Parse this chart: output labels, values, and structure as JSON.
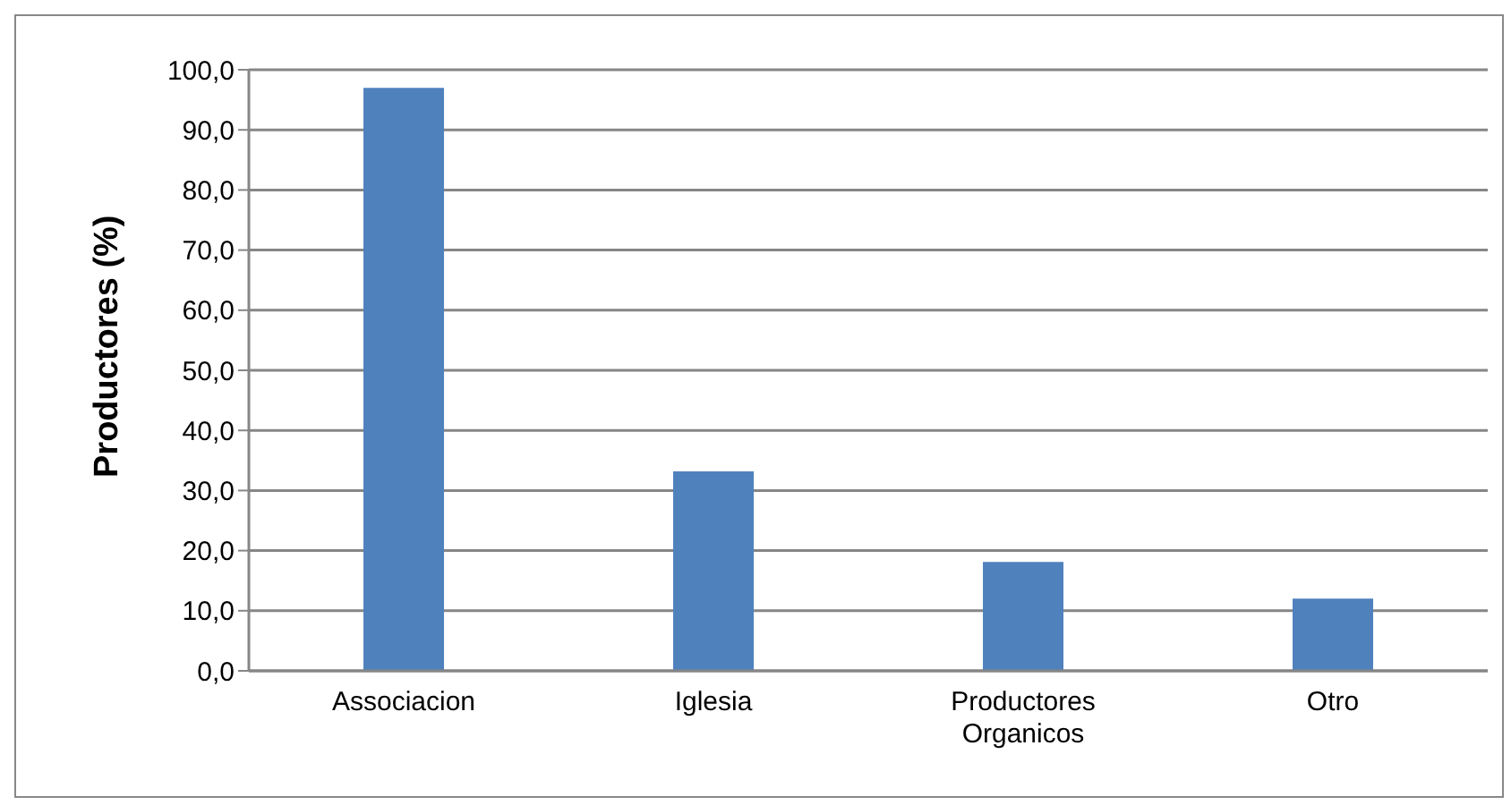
{
  "chart_data": {
    "type": "bar",
    "ylabel": "Productores (%)",
    "categories": [
      "Associacion",
      "Iglesia",
      "Productores Organicos",
      "Otro"
    ],
    "values": [
      97.0,
      33.2,
      18.1,
      12.0
    ],
    "color": "#4f81bd",
    "ylim": [
      0,
      100
    ],
    "yticks": [
      {
        "value": 0,
        "label": "0,0"
      },
      {
        "value": 10,
        "label": "10,0"
      },
      {
        "value": 20,
        "label": "20,0"
      },
      {
        "value": 30,
        "label": "30,0"
      },
      {
        "value": 40,
        "label": "40,0"
      },
      {
        "value": 50,
        "label": "50,0"
      },
      {
        "value": 60,
        "label": "60,0"
      },
      {
        "value": 70,
        "label": "70,0"
      },
      {
        "value": 80,
        "label": "80,0"
      },
      {
        "value": 90,
        "label": "90,0"
      },
      {
        "value": 100,
        "label": "100,0"
      }
    ],
    "grid": "y"
  }
}
